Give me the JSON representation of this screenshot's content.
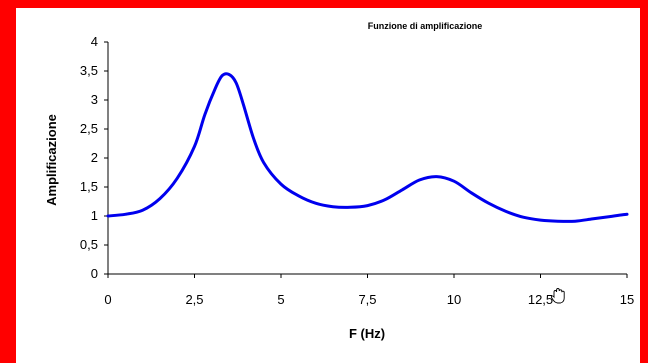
{
  "chart_data": {
    "type": "line",
    "title": "Funzione di amplificazione",
    "xlabel": "F (Hz)",
    "ylabel": "Amplificazione",
    "xlim": [
      0,
      15
    ],
    "ylim": [
      0,
      4
    ],
    "x_ticks": [
      "0",
      "2,5",
      "5",
      "7,5",
      "10",
      "12,5",
      "15"
    ],
    "y_ticks": [
      "0",
      "0,5",
      "1",
      "1,5",
      "2",
      "2,5",
      "3",
      "3,5",
      "4"
    ],
    "grid": false,
    "line_color": "#0000ee",
    "series": [
      {
        "x": [
          0,
          0.5,
          1,
          1.5,
          2,
          2.5,
          2.8,
          3.1,
          3.3,
          3.5,
          3.7,
          3.9,
          4.2,
          4.5,
          5,
          5.5,
          6,
          6.5,
          7,
          7.5,
          8,
          8.5,
          9,
          9.5,
          10,
          10.5,
          11,
          11.5,
          12,
          12.5,
          13,
          13.5,
          14,
          14.5,
          15
        ],
        "values": [
          1.0,
          1.03,
          1.1,
          1.3,
          1.65,
          2.2,
          2.75,
          3.2,
          3.42,
          3.44,
          3.3,
          2.95,
          2.35,
          1.92,
          1.55,
          1.35,
          1.22,
          1.16,
          1.15,
          1.18,
          1.28,
          1.45,
          1.62,
          1.68,
          1.6,
          1.4,
          1.22,
          1.08,
          0.98,
          0.93,
          0.91,
          0.91,
          0.95,
          0.99,
          1.03
        ]
      }
    ]
  }
}
